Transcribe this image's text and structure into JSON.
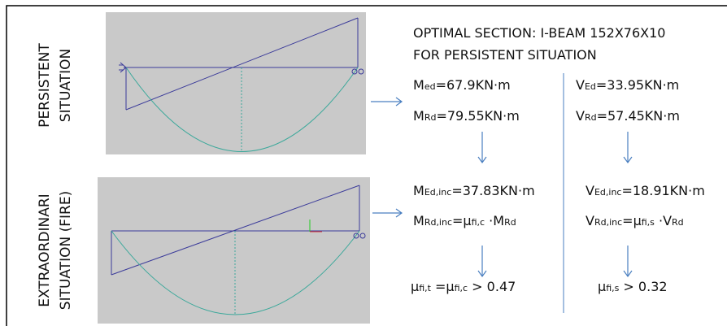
{
  "labels": {
    "persistent": [
      "PERSISTENT",
      "SITUATION"
    ],
    "extraordinary": [
      "EXTRAORDINARI",
      "SITUATION (FIRE)"
    ]
  },
  "header": {
    "lines": [
      "OPTIMAL SECTION: I-BEAM 152X76X10",
      "FOR PERSISTENT SITUATION"
    ]
  },
  "formulas": [
    {
      "parts": [
        {
          "t": "M"
        },
        {
          "sub": "ed"
        },
        {
          "t": "=67.9KN·m"
        }
      ]
    },
    {
      "parts": [
        {
          "t": "V"
        },
        {
          "sub": "Ed"
        },
        {
          "t": "=33.95KN·m"
        }
      ]
    },
    {
      "parts": [
        {
          "t": "M"
        },
        {
          "sub": "Rd"
        },
        {
          "t": "=79.55KN·m"
        }
      ]
    },
    {
      "parts": [
        {
          "t": "V"
        },
        {
          "sub": "Rd"
        },
        {
          "t": "=57.45KN·m"
        }
      ]
    },
    {
      "parts": [
        {
          "t": "M"
        },
        {
          "sub": "Ed,inc"
        },
        {
          "t": "=37.83KN·m"
        }
      ]
    },
    {
      "parts": [
        {
          "t": "V"
        },
        {
          "sub": "Ed,inc"
        },
        {
          "t": "=18.91KN·m"
        }
      ]
    },
    {
      "parts": [
        {
          "t": "M"
        },
        {
          "sub": "Rd,inc"
        },
        {
          "t": "=μ"
        },
        {
          "sub": "fi,c"
        },
        {
          "t": " ·M"
        },
        {
          "sub": "Rd"
        }
      ]
    },
    {
      "parts": [
        {
          "t": "V"
        },
        {
          "sub": "Rd,inc"
        },
        {
          "t": "=μ"
        },
        {
          "sub": "fi,s"
        },
        {
          "t": " ·V"
        },
        {
          "sub": "Rd"
        }
      ]
    },
    {
      "parts": [
        {
          "t": "μ"
        },
        {
          "sub": "fi,t"
        },
        {
          "t": " =μ"
        },
        {
          "sub": "fi,c"
        },
        {
          "t": " > 0.47"
        }
      ]
    },
    {
      "parts": [
        {
          "t": "μ"
        },
        {
          "sub": "fi,s"
        },
        {
          "t": " > 0.32"
        }
      ]
    }
  ]
}
